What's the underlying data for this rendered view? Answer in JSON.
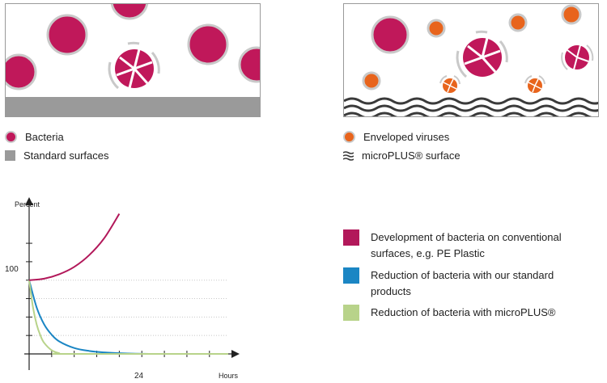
{
  "colors": {
    "bacteria": "#c0185a",
    "virus": "#e8641c",
    "standard_surface": "#9a9a9a",
    "conventional": "#b2185a",
    "standard_products": "#1b86c4",
    "microplus": "#b8d38a"
  },
  "illustration": {
    "left_legend": [
      {
        "label": "Bacteria",
        "icon": "bacteria-dot-icon"
      },
      {
        "label": "Standard surfaces",
        "icon": "standard-surface-swatch-icon"
      }
    ],
    "right_legend": [
      {
        "label": "Enveloped viruses",
        "icon": "virus-dot-icon"
      },
      {
        "label": "microPLUS® surface",
        "icon": "wave-surface-swatch-icon"
      }
    ]
  },
  "chart_data": {
    "type": "line",
    "ylabel": "Percent",
    "xlabel": "Hours",
    "x_tick_label": "24",
    "y_tick_label": "100",
    "xlim": [
      0,
      53
    ],
    "ylim": [
      0,
      195
    ],
    "series": [
      {
        "name": "Development of bacteria on conventional surfaces, e.g. PE Plastic",
        "color": "#b2185a",
        "x": [
          0,
          4,
          8,
          12,
          16,
          20,
          24
        ],
        "y": [
          100,
          102,
          108,
          118,
          134,
          157,
          190
        ]
      },
      {
        "name": "Reduction of bacteria with our standard products",
        "color": "#1b86c4",
        "x": [
          0,
          2,
          4,
          6,
          8,
          12,
          16,
          20,
          24,
          32,
          40,
          53
        ],
        "y": [
          100,
          63,
          40,
          26,
          17,
          8,
          4,
          2,
          1,
          0,
          0,
          0
        ]
      },
      {
        "name": "Reduction of bacteria with microPLUS®",
        "color": "#b8d38a",
        "x": [
          0,
          1,
          2,
          3,
          4,
          6,
          8,
          10,
          53
        ],
        "y": [
          100,
          64,
          40,
          25,
          15,
          5,
          1,
          0,
          0
        ]
      }
    ]
  }
}
